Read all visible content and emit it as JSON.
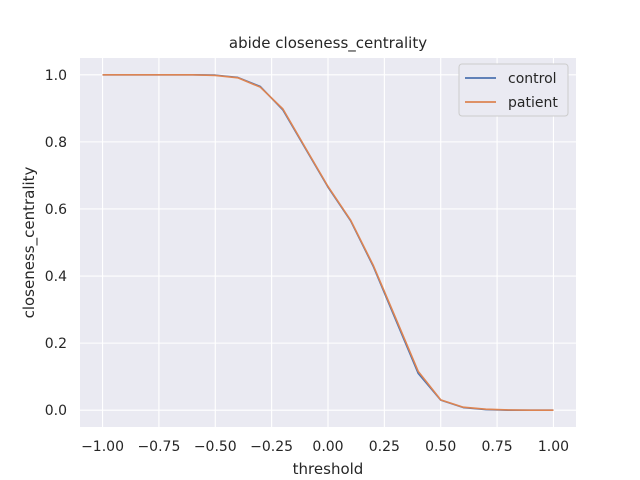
{
  "chart_data": {
    "type": "line",
    "title": "abide closeness_centrality",
    "xlabel": "threshold",
    "ylabel": "closeness_centrality",
    "xlim": [
      -1.1,
      1.1
    ],
    "ylim": [
      -0.05,
      1.05
    ],
    "xticks": [
      -1.0,
      -0.75,
      -0.5,
      -0.25,
      0.0,
      0.25,
      0.5,
      0.75,
      1.0
    ],
    "xtick_labels": [
      "−1.00",
      "−0.75",
      "−0.50",
      "−0.25",
      "0.00",
      "0.25",
      "0.50",
      "0.75",
      "1.00"
    ],
    "yticks": [
      0.0,
      0.2,
      0.4,
      0.6,
      0.8,
      1.0
    ],
    "ytick_labels": [
      "0.0",
      "0.2",
      "0.4",
      "0.6",
      "0.8",
      "1.0"
    ],
    "grid": true,
    "legend_position": "top-right",
    "x": [
      -1.0,
      -0.9,
      -0.8,
      -0.7,
      -0.6,
      -0.5,
      -0.4,
      -0.3,
      -0.2,
      -0.1,
      0.0,
      0.1,
      0.2,
      0.3,
      0.4,
      0.5,
      0.6,
      0.7,
      0.8,
      0.9,
      1.0
    ],
    "series": [
      {
        "name": "control",
        "color": "#4c72b0",
        "values": [
          1.0,
          1.0,
          1.0,
          1.0,
          1.0,
          0.999,
          0.992,
          0.965,
          0.895,
          0.78,
          0.665,
          0.565,
          0.43,
          0.27,
          0.11,
          0.03,
          0.008,
          0.002,
          0.0,
          0.0,
          0.0
        ]
      },
      {
        "name": "patient",
        "color": "#dd8452",
        "values": [
          1.0,
          1.0,
          1.0,
          1.0,
          1.0,
          0.998,
          0.991,
          0.963,
          0.898,
          0.782,
          0.667,
          0.567,
          0.433,
          0.275,
          0.116,
          0.031,
          0.009,
          0.003,
          0.001,
          0.0,
          0.0
        ]
      }
    ],
    "colors": {
      "plot_background": "#eaeaf2",
      "grid": "#ffffff",
      "legend_background": "#eaeaf2",
      "legend_border": "#cccccc"
    }
  }
}
